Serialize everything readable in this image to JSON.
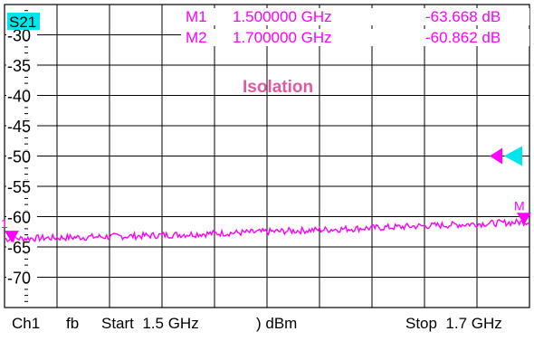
{
  "trace": {
    "label": "S21",
    "label_bg": "#00e5ee",
    "title": "Isolation",
    "title_color": "#e05aa0",
    "color": "#ff00ff",
    "ref_marker_color": "#00e5ee"
  },
  "markers": [
    {
      "id": "M1",
      "freq": "1.500000 GHz",
      "value": "-63.668 dB"
    },
    {
      "id": "M2",
      "freq": "1.700000 GHz",
      "value": "-60.862 dB"
    }
  ],
  "marker_tags": {
    "left": "1",
    "right": "M"
  },
  "footer": {
    "channel": "Ch1",
    "mode": "fb",
    "start": "Start  1.5 GHz",
    "power": ") dBm",
    "stop": "Stop  1.7 GHz"
  },
  "chart_data": {
    "type": "line",
    "ylim": [
      -75,
      -25
    ],
    "xlim": [
      1.5,
      1.7
    ],
    "y_ticks": [
      "-30",
      "-35",
      "-40",
      "-45",
      "-50",
      "-55",
      "-60",
      "-65",
      "-70"
    ],
    "y_tick_values": [
      -30,
      -35,
      -40,
      -45,
      -50,
      -55,
      -60,
      -65,
      -70
    ],
    "reference_level": -50,
    "series": [
      {
        "x": [
          1.5,
          1.55,
          1.6,
          1.65,
          1.7
        ],
        "values": [
          -63.668,
          -63.2,
          -62.5,
          -61.7,
          -60.862
        ]
      }
    ]
  }
}
